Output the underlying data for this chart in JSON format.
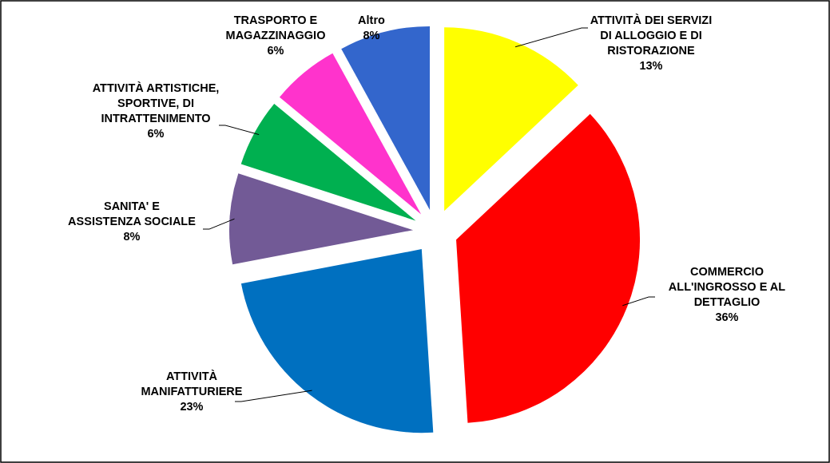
{
  "chart_data": {
    "type": "pie",
    "categories": [
      "ATTIVITÀ DEI SERVIZI DI ALLOGGIO E DI RISTORAZIONE",
      "COMMERCIO ALL'INGROSSO E AL DETTAGLIO",
      "ATTIVITÀ MANIFATTURIERE",
      "SANITA' E ASSISTENZA SOCIALE",
      "ATTIVITÀ ARTISTICHE, SPORTIVE, DI INTRATTENIMENTO",
      "TRASPORTO E MAGAZZINAGGIO",
      "Altro"
    ],
    "values": [
      13,
      36,
      23,
      8,
      6,
      6,
      8
    ],
    "colors": [
      "#ffff00",
      "#ff0000",
      "#0070c0",
      "#725a96",
      "#00b050",
      "#ff33cc",
      "#3366cc"
    ],
    "value_labels": [
      "13%",
      "36%",
      "23%",
      "8%",
      "6%",
      "6%",
      "8%"
    ]
  }
}
